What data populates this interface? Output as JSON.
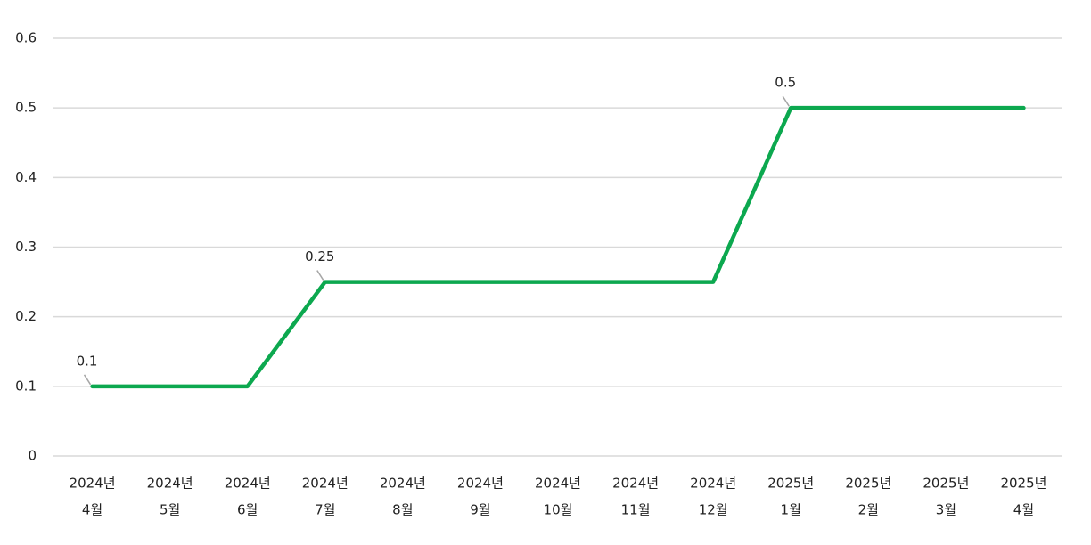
{
  "chart_data": {
    "type": "line",
    "categories": [
      [
        "2024년",
        "4월"
      ],
      [
        "2024년",
        "5월"
      ],
      [
        "2024년",
        "6월"
      ],
      [
        "2024년",
        "7월"
      ],
      [
        "2024년",
        "8월"
      ],
      [
        "2024년",
        "9월"
      ],
      [
        "2024년",
        "10월"
      ],
      [
        "2024년",
        "11월"
      ],
      [
        "2024년",
        "12월"
      ],
      [
        "2025년",
        "1월"
      ],
      [
        "2025년",
        "2월"
      ],
      [
        "2025년",
        "3월"
      ],
      [
        "2025년",
        "4월"
      ]
    ],
    "values": [
      0.1,
      0.1,
      0.1,
      0.25,
      0.25,
      0.25,
      0.25,
      0.25,
      0.25,
      0.5,
      0.5,
      0.5,
      0.5
    ],
    "value_labels": [
      "0.1",
      null,
      null,
      "0.25",
      null,
      null,
      null,
      null,
      null,
      "0.5",
      null,
      null,
      null
    ],
    "color": "#0ca84f",
    "ylim": [
      0,
      0.6
    ],
    "yticks": [
      0,
      0.1,
      0.2,
      0.3,
      0.4,
      0.5,
      0.6
    ],
    "grid": true
  }
}
